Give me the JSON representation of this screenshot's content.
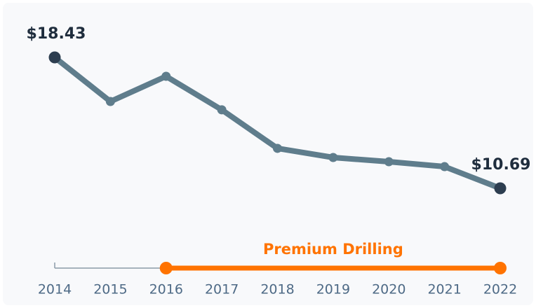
{
  "chart_data": {
    "type": "line",
    "categories": [
      "2014",
      "2015",
      "2016",
      "2017",
      "2018",
      "2019",
      "2020",
      "2021",
      "2022"
    ],
    "series": [
      {
        "color": "#5f7d8c",
        "values": [
          18.43,
          15.82,
          17.31,
          15.33,
          13.05,
          12.51,
          12.26,
          11.97,
          10.69
        ],
        "value_labels": [
          "$18.43",
          null,
          null,
          null,
          null,
          null,
          null,
          null,
          "$10.69"
        ]
      }
    ],
    "ylim": [
      9,
      19
    ],
    "annotation": {
      "text": "Premium Drilling",
      "from": "2016",
      "to": "2022",
      "color": "#ff7300"
    }
  }
}
